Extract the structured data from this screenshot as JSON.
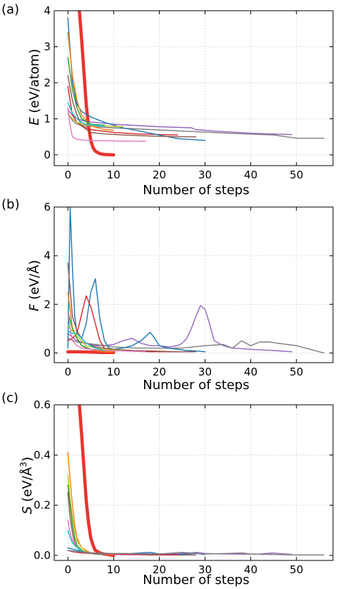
{
  "chart_data": [
    {
      "type": "line",
      "panel_label": "(a)",
      "xlabel": "Number of steps",
      "ylabel_symbol": "E",
      "ylabel_unit": " (eV/atom)",
      "xlim": [
        -3,
        58
      ],
      "ylim": [
        -0.3,
        4
      ],
      "xticks": [
        0,
        10,
        20,
        30,
        40,
        50
      ],
      "yticks": [
        0,
        1,
        2,
        3,
        4
      ],
      "grid": true,
      "series": [
        {
          "color": "#e8342f",
          "width": 4.5,
          "x": [
            2.5,
            3,
            3.5,
            4,
            4.5,
            5,
            5.5,
            6,
            7,
            8,
            10
          ],
          "y": [
            4.0,
            3.2,
            2.3,
            1.4,
            0.8,
            0.4,
            0.2,
            0.1,
            0.03,
            0.01,
            0.0
          ]
        },
        {
          "color": "#7f7f7f",
          "width": 1.4,
          "x": [
            0,
            1,
            2,
            4,
            8,
            15,
            25,
            35,
            45,
            50,
            56
          ],
          "y": [
            1.15,
            0.95,
            0.85,
            0.8,
            0.76,
            0.72,
            0.66,
            0.6,
            0.55,
            0.46,
            0.46
          ]
        },
        {
          "color": "#9467bd",
          "width": 1.4,
          "x": [
            0,
            1,
            2,
            4,
            6,
            10,
            20,
            27,
            28,
            32,
            40,
            49
          ],
          "y": [
            1.25,
            1.1,
            1.0,
            0.92,
            0.9,
            0.85,
            0.78,
            0.75,
            0.7,
            0.66,
            0.6,
            0.56
          ]
        },
        {
          "color": "#d62728",
          "width": 1.4,
          "x": [
            0,
            1,
            2,
            3,
            5,
            10,
            15,
            24
          ],
          "y": [
            1.9,
            1.1,
            0.9,
            0.8,
            0.7,
            0.62,
            0.58,
            0.55
          ]
        },
        {
          "color": "#1f77b4",
          "width": 1.4,
          "x": [
            0,
            1,
            2,
            3,
            5,
            8,
            12,
            18,
            24,
            30
          ],
          "y": [
            3.8,
            2.0,
            1.4,
            1.2,
            1.05,
            0.9,
            0.75,
            0.6,
            0.45,
            0.4
          ]
        },
        {
          "color": "#8c564b",
          "width": 1.4,
          "x": [
            0,
            1,
            2,
            3,
            5,
            8,
            12,
            18,
            24,
            28
          ],
          "y": [
            2.2,
            1.5,
            1.1,
            0.8,
            0.62,
            0.58,
            0.55,
            0.52,
            0.5,
            0.5
          ]
        },
        {
          "color": "#ff7f0e",
          "width": 1.4,
          "x": [
            0,
            1,
            2,
            3,
            5,
            8,
            10
          ],
          "y": [
            3.4,
            2.2,
            1.5,
            1.1,
            0.8,
            0.7,
            0.68
          ]
        },
        {
          "color": "#2ca02c",
          "width": 1.4,
          "x": [
            0,
            1,
            2,
            3,
            5,
            8
          ],
          "y": [
            2.7,
            1.8,
            1.3,
            1.0,
            0.85,
            0.82
          ]
        },
        {
          "color": "#bcbd22",
          "width": 1.4,
          "x": [
            0,
            1,
            2,
            3,
            5,
            8,
            12
          ],
          "y": [
            1.15,
            1.0,
            0.9,
            0.85,
            0.82,
            0.8,
            0.78
          ]
        },
        {
          "color": "#e377c2",
          "width": 1.4,
          "x": [
            0,
            0.5,
            1,
            2,
            4,
            8,
            12,
            17
          ],
          "y": [
            1.3,
            0.8,
            0.5,
            0.43,
            0.4,
            0.39,
            0.38,
            0.38
          ]
        },
        {
          "color": "#17becf",
          "width": 1.4,
          "x": [
            0,
            1,
            2,
            3,
            4,
            6,
            8
          ],
          "y": [
            1.45,
            1.15,
            1.0,
            0.9,
            0.85,
            0.82,
            0.8
          ]
        }
      ]
    },
    {
      "type": "line",
      "panel_label": "(b)",
      "xlabel": "Number of steps",
      "ylabel_symbol": "F",
      "ylabel_unit": " (eV/Å)",
      "xlim": [
        -3,
        58
      ],
      "ylim": [
        -0.4,
        6
      ],
      "xticks": [
        0,
        10,
        20,
        30,
        40,
        50
      ],
      "yticks": [
        0,
        2,
        4,
        6
      ],
      "grid": true,
      "series": [
        {
          "color": "#e8342f",
          "width": 4.5,
          "x": [
            0,
            2,
            4,
            6,
            8,
            10
          ],
          "y": [
            0.05,
            0.05,
            0.04,
            0.03,
            0.02,
            0.02
          ]
        },
        {
          "color": "#9467bd",
          "width": 1.4,
          "x": [
            0,
            2,
            4,
            6,
            8,
            10,
            12,
            14,
            16,
            18,
            20,
            22,
            24,
            25,
            26,
            27,
            28,
            29,
            30,
            31,
            32,
            34,
            36,
            40,
            45,
            49
          ],
          "y": [
            0.8,
            0.5,
            0.4,
            0.3,
            0.3,
            0.35,
            0.5,
            0.6,
            0.4,
            0.3,
            0.3,
            0.25,
            0.3,
            0.4,
            0.6,
            1.0,
            1.5,
            1.95,
            1.8,
            1.2,
            0.5,
            0.3,
            0.2,
            0.15,
            0.1,
            0.05
          ]
        },
        {
          "color": "#7f7f7f",
          "width": 1.4,
          "x": [
            0,
            2,
            4,
            6,
            8,
            10,
            15,
            20,
            25,
            30,
            34,
            36,
            37,
            38,
            40,
            42,
            44,
            46,
            48,
            50,
            52,
            56
          ],
          "y": [
            0.6,
            0.45,
            0.4,
            0.35,
            0.3,
            0.25,
            0.2,
            0.2,
            0.2,
            0.3,
            0.35,
            0.2,
            0.35,
            0.5,
            0.3,
            0.45,
            0.45,
            0.4,
            0.35,
            0.3,
            0.2,
            0.0
          ]
        },
        {
          "color": "#1f77b4",
          "width": 1.4,
          "x": [
            0,
            0.5,
            1,
            1.5,
            2,
            3,
            4,
            5,
            6,
            7,
            8,
            9,
            10,
            12,
            14,
            16,
            18,
            19,
            20,
            22,
            24,
            26,
            28,
            30
          ],
          "y": [
            0.2,
            6.0,
            3.5,
            1.5,
            0.8,
            0.6,
            1.2,
            2.5,
            3.05,
            1.4,
            0.5,
            0.2,
            0.15,
            0.2,
            0.3,
            0.5,
            0.85,
            0.6,
            0.3,
            0.2,
            0.15,
            0.1,
            0.08,
            0.05
          ]
        },
        {
          "color": "#d62728",
          "width": 1.4,
          "x": [
            0,
            1,
            2,
            3,
            4,
            5,
            6,
            7,
            8,
            9,
            10,
            12,
            14,
            18,
            24
          ],
          "y": [
            0.5,
            0.6,
            0.8,
            1.6,
            2.35,
            1.9,
            1.2,
            0.5,
            0.2,
            0.15,
            0.1,
            0.1,
            0.08,
            0.05,
            0.05
          ]
        },
        {
          "color": "#8c564b",
          "width": 1.4,
          "x": [
            0,
            1,
            2,
            3,
            4,
            6,
            10,
            14,
            18,
            24,
            28
          ],
          "y": [
            3.7,
            1.5,
            0.9,
            0.6,
            0.4,
            0.25,
            0.15,
            0.1,
            0.08,
            0.05,
            0.05
          ]
        },
        {
          "color": "#ff7f0e",
          "width": 1.4,
          "x": [
            0,
            0.5,
            1,
            2,
            3,
            4,
            6,
            8,
            10
          ],
          "y": [
            2.5,
            1.8,
            1.0,
            0.6,
            0.3,
            0.2,
            0.1,
            0.05,
            0.05
          ]
        },
        {
          "color": "#2ca02c",
          "width": 1.4,
          "x": [
            0,
            1,
            2,
            3,
            5,
            8
          ],
          "y": [
            1.7,
            1.0,
            0.6,
            0.3,
            0.15,
            0.1
          ]
        },
        {
          "color": "#bcbd22",
          "width": 1.4,
          "x": [
            0,
            1,
            2,
            3,
            4,
            6,
            8,
            10,
            12
          ],
          "y": [
            1.1,
            0.9,
            0.7,
            0.5,
            0.3,
            0.2,
            0.15,
            0.12,
            0.1
          ]
        },
        {
          "color": "#e377c2",
          "width": 1.4,
          "x": [
            0,
            0.5,
            1,
            2,
            3,
            5,
            8,
            12,
            17
          ],
          "y": [
            1.7,
            1.0,
            0.5,
            0.3,
            0.2,
            0.15,
            0.1,
            0.08,
            0.05
          ]
        },
        {
          "color": "#17becf",
          "width": 1.4,
          "x": [
            0,
            1,
            2,
            3,
            4,
            5,
            6,
            8
          ],
          "y": [
            0.9,
            0.8,
            0.8,
            0.6,
            0.4,
            0.3,
            0.2,
            0.1
          ]
        }
      ]
    },
    {
      "type": "line",
      "panel_label": "(c)",
      "xlabel": "Number of steps",
      "ylabel_symbol": "S",
      "ylabel_unit": " (eV/Å",
      "ylabel_sup": "3",
      "ylabel_close": ")",
      "xlim": [
        -3,
        58
      ],
      "ylim": [
        -0.02,
        0.6
      ],
      "xticks": [
        0,
        10,
        20,
        30,
        40,
        50
      ],
      "yticks": [
        0.0,
        0.2,
        0.4,
        0.6
      ],
      "ytick_labels": [
        "0.0",
        "0.2",
        "0.4",
        "0.6"
      ],
      "grid": true,
      "series": [
        {
          "color": "#e8342f",
          "width": 4.5,
          "x": [
            2.5,
            3,
            3.5,
            4,
            4.5,
            5,
            5.5,
            6,
            7,
            8,
            10
          ],
          "y": [
            0.6,
            0.48,
            0.35,
            0.22,
            0.13,
            0.07,
            0.04,
            0.02,
            0.01,
            0.005,
            0.0
          ]
        },
        {
          "color": "#ff7f0e",
          "width": 1.4,
          "x": [
            0,
            0.5,
            1,
            1.5,
            2,
            3,
            4,
            5,
            6,
            8,
            10
          ],
          "y": [
            0.41,
            0.3,
            0.2,
            0.12,
            0.07,
            0.03,
            0.02,
            0.01,
            0.005,
            0.003,
            0.002
          ]
        },
        {
          "color": "#bcbd22",
          "width": 1.4,
          "x": [
            0,
            0.5,
            1,
            1.5,
            2,
            3,
            4,
            6,
            8,
            12
          ],
          "y": [
            0.32,
            0.22,
            0.15,
            0.1,
            0.06,
            0.03,
            0.015,
            0.008,
            0.005,
            0.003
          ]
        },
        {
          "color": "#2ca02c",
          "width": 1.4,
          "x": [
            0,
            0.5,
            1,
            1.5,
            2,
            3,
            4,
            6,
            8
          ],
          "y": [
            0.28,
            0.2,
            0.12,
            0.07,
            0.04,
            0.02,
            0.01,
            0.006,
            0.004
          ]
        },
        {
          "color": "#8c564b",
          "width": 1.4,
          "x": [
            0,
            0.5,
            1,
            1.5,
            2,
            3,
            5,
            8,
            12,
            20,
            28
          ],
          "y": [
            0.25,
            0.15,
            0.09,
            0.05,
            0.03,
            0.015,
            0.008,
            0.005,
            0.003,
            0.002,
            0.002
          ]
        },
        {
          "color": "#e377c2",
          "width": 1.4,
          "x": [
            0,
            0.5,
            1,
            2,
            3,
            5,
            8,
            12,
            17
          ],
          "y": [
            0.14,
            0.09,
            0.06,
            0.03,
            0.015,
            0.008,
            0.005,
            0.003,
            0.002
          ]
        },
        {
          "color": "#17becf",
          "width": 1.4,
          "x": [
            0,
            0.5,
            1,
            2,
            3,
            4,
            6,
            8
          ],
          "y": [
            0.1,
            0.07,
            0.05,
            0.03,
            0.015,
            0.01,
            0.006,
            0.004
          ]
        },
        {
          "color": "#1f77b4",
          "width": 1.4,
          "x": [
            0,
            1,
            2,
            3,
            5,
            8,
            12,
            16,
            18,
            20,
            24,
            28,
            30
          ],
          "y": [
            0.03,
            0.025,
            0.02,
            0.015,
            0.01,
            0.008,
            0.006,
            0.01,
            0.012,
            0.006,
            0.004,
            0.008,
            0.004
          ]
        },
        {
          "color": "#d62728",
          "width": 1.4,
          "x": [
            0,
            1,
            2,
            3,
            5,
            8,
            12,
            16,
            20,
            24
          ],
          "y": [
            0.02,
            0.015,
            0.012,
            0.01,
            0.008,
            0.006,
            0.005,
            0.004,
            0.003,
            0.003
          ]
        },
        {
          "color": "#9467bd",
          "width": 1.4,
          "x": [
            0,
            2,
            5,
            8,
            12,
            16,
            20,
            24,
            27,
            28,
            30,
            34,
            38,
            42,
            45,
            46,
            49
          ],
          "y": [
            0.02,
            0.015,
            0.01,
            0.008,
            0.008,
            0.006,
            0.006,
            0.007,
            0.01,
            0.012,
            0.008,
            0.006,
            0.005,
            0.006,
            0.01,
            0.008,
            0.004
          ]
        },
        {
          "color": "#7f7f7f",
          "width": 1.4,
          "x": [
            0,
            2,
            5,
            10,
            15,
            20,
            25,
            30,
            35,
            38,
            40,
            45,
            50,
            56
          ],
          "y": [
            0.02,
            0.015,
            0.01,
            0.008,
            0.007,
            0.006,
            0.012,
            0.006,
            0.008,
            0.01,
            0.006,
            0.004,
            0.002,
            0.002
          ]
        }
      ]
    }
  ]
}
